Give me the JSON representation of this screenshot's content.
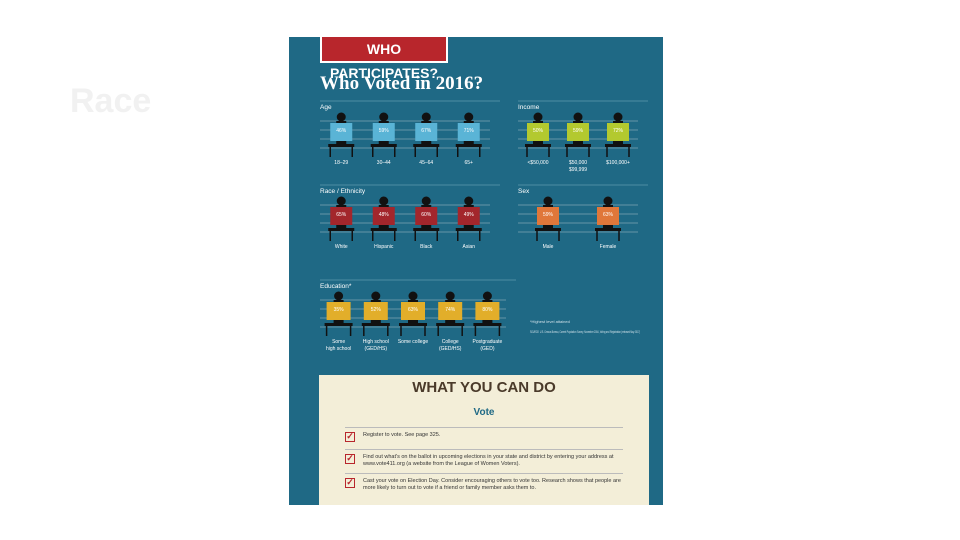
{
  "slide": {
    "title": "Race"
  },
  "infographic": {
    "banner": "WHO PARTICIPATES?",
    "title": "Who Voted in 2016?",
    "groups": [
      {
        "name": "Age",
        "color": "#5ab4d6",
        "items": [
          {
            "value": "46%",
            "label": "18–29"
          },
          {
            "value": "59%",
            "label": "30–44"
          },
          {
            "value": "67%",
            "label": "45–64"
          },
          {
            "value": "71%",
            "label": "65+"
          }
        ]
      },
      {
        "name": "Income",
        "color": "#b3c92f",
        "items": [
          {
            "value": "50%",
            "label": "<$50,000"
          },
          {
            "value": "59%",
            "label": "$50,000",
            "sub": "$99,999"
          },
          {
            "value": "72%",
            "label": "$100,000+"
          }
        ]
      },
      {
        "name": "Race / Ethnicity",
        "color": "#a3262c",
        "items": [
          {
            "value": "65%",
            "label": "White"
          },
          {
            "value": "48%",
            "label": "Hispanic"
          },
          {
            "value": "60%",
            "label": "Black"
          },
          {
            "value": "49%",
            "label": "Asian"
          }
        ]
      },
      {
        "name": "Sex",
        "color": "#e0773a",
        "items": [
          {
            "value": "59%",
            "label": "Male"
          },
          {
            "value": "63%",
            "label": "Female"
          }
        ]
      },
      {
        "name": "Education*",
        "color": "#e2ae2a",
        "items": [
          {
            "value": "35%",
            "label": "Some",
            "sub": "high school"
          },
          {
            "value": "52%",
            "label": "High school",
            "sub": "(GED/HS)"
          },
          {
            "value": "63%",
            "label": "Some college"
          },
          {
            "value": "74%",
            "label": "College",
            "sub": "(GED/HS)"
          },
          {
            "value": "80%",
            "label": "Postgraduate",
            "sub": "(GED)"
          }
        ]
      }
    ],
    "footnote": "*Highest level attained",
    "source": "SOURCE: U.S. Census Bureau, Current Population Survey, November 2016, Voting and Registration (released May 2017)"
  },
  "actions": {
    "title": "WHAT YOU CAN DO",
    "subtitle": "Vote",
    "items": [
      "Register to vote. See page 325.",
      "Find out what's on the ballot in upcoming elections in your state and district by entering your address at www.vote411.org (a website from the League of Women Voters).",
      "Cast your vote on Election Day. Consider encouraging others to vote too. Research shows that people are more likely to turn out to vote if a friend or family member asks them to."
    ]
  }
}
